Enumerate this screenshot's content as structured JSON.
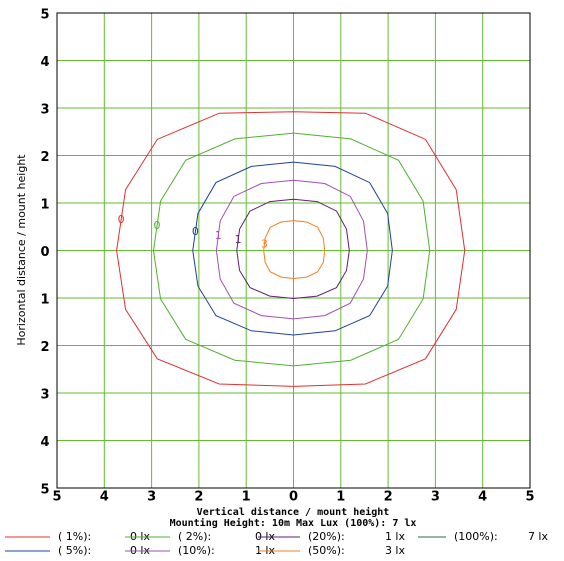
{
  "chart_data": {
    "type": "contour",
    "xlabel": "Vertical distance / mount height",
    "subtitle": "Mounting Height: 10m Max Lux (100%): 7 lx",
    "ylabel": "Horizontal distance / mount height",
    "xlim": [
      -5,
      5
    ],
    "ylim": [
      -5,
      5
    ],
    "xticks": [
      {
        "value": -5,
        "label": "5"
      },
      {
        "value": -4,
        "label": "4"
      },
      {
        "value": -3,
        "label": "3"
      },
      {
        "value": -2,
        "label": "2"
      },
      {
        "value": -1,
        "label": "1"
      },
      0,
      1,
      2,
      3,
      4,
      5
    ],
    "yticks": [
      5,
      4,
      3,
      2,
      1,
      0,
      {
        "value": -1,
        "label": "1"
      },
      {
        "value": -2,
        "label": "2"
      },
      {
        "value": -3,
        "label": "3"
      },
      {
        "value": -4,
        "label": "4"
      },
      {
        "value": -5,
        "label": "5"
      }
    ],
    "grid": true,
    "grid_color": "#66bb33",
    "series": [
      {
        "name": "( 1%):",
        "lux_label": "0 lx",
        "contour_label": "0",
        "color": "#e03030",
        "x": [
          3.62,
          3.44,
          2.79,
          1.52,
          0,
          -1.57,
          -2.88,
          -3.55,
          -3.74,
          -3.55,
          -2.88,
          -1.57,
          0,
          1.52,
          2.79,
          3.44
        ],
        "y": [
          0,
          1.28,
          2.34,
          2.89,
          2.92,
          2.89,
          2.34,
          1.28,
          0,
          -1.24,
          -2.28,
          -2.81,
          -2.86,
          -2.81,
          -2.28,
          -1.24
        ]
      },
      {
        "name": "( 5%):",
        "lux_label": "0 lx",
        "contour_label": "0",
        "color": "#2040a0",
        "x": [
          2.09,
          1.99,
          1.61,
          0.88,
          0,
          -0.89,
          -1.64,
          -2.02,
          -2.13,
          -2.02,
          -1.64,
          -0.89,
          0,
          0.88,
          1.61,
          1.99
        ],
        "y": [
          0,
          0.78,
          1.43,
          1.77,
          1.86,
          1.77,
          1.43,
          0.78,
          0,
          -0.75,
          -1.37,
          -1.69,
          -1.78,
          -1.69,
          -1.37,
          -0.75
        ]
      },
      {
        "name": "( 2%):",
        "lux_label": "0 lx",
        "contour_label": "0",
        "color": "#50b030",
        "x": [
          2.88,
          2.74,
          2.22,
          1.21,
          0,
          -1.24,
          -2.28,
          -2.81,
          -2.96,
          -2.81,
          -2.28,
          -1.24,
          0,
          1.21,
          2.22,
          2.74
        ],
        "y": [
          0,
          1.04,
          1.9,
          2.35,
          2.47,
          2.35,
          1.9,
          1.04,
          0,
          -1.02,
          -1.87,
          -2.31,
          -2.43,
          -2.31,
          -1.87,
          -1.02
        ]
      },
      {
        "name": "(10%):",
        "lux_label": "1 lx",
        "contour_label": "1",
        "color": "#a050b0",
        "x": [
          1.56,
          1.48,
          1.2,
          0.66,
          0,
          -0.68,
          -1.26,
          -1.55,
          -1.63,
          -1.55,
          -1.26,
          -0.68,
          0,
          0.66,
          1.2,
          1.48
        ],
        "y": [
          0,
          0.62,
          1.14,
          1.41,
          1.48,
          1.41,
          1.14,
          0.62,
          0,
          -0.6,
          -1.11,
          -1.37,
          -1.44,
          -1.37,
          -1.11,
          -0.6
        ]
      },
      {
        "name": "(20%):",
        "lux_label": "1 lx",
        "contour_label": "1",
        "color": "#602070",
        "x": [
          1.18,
          1.12,
          0.91,
          0.5,
          0,
          -0.5,
          -0.92,
          -1.14,
          -1.2,
          -1.14,
          -0.92,
          -0.5,
          0,
          0.5,
          0.91,
          1.12
        ],
        "y": [
          0,
          0.45,
          0.83,
          1.03,
          1.08,
          1.03,
          0.83,
          0.45,
          0,
          -0.42,
          -0.78,
          -0.96,
          -1.01,
          -0.96,
          -0.78,
          -0.42
        ]
      },
      {
        "name": "(50%):",
        "lux_label": "3 lx",
        "contour_label": "3",
        "color": "#f08020",
        "x": [
          0.66,
          0.63,
          0.51,
          0.28,
          0,
          -0.26,
          -0.49,
          -0.6,
          -0.63,
          -0.6,
          -0.49,
          -0.26,
          0,
          0.28,
          0.51,
          0.63
        ],
        "y": [
          0,
          0.26,
          0.49,
          0.6,
          0.63,
          0.6,
          0.49,
          0.26,
          0,
          -0.25,
          -0.45,
          -0.56,
          -0.59,
          -0.56,
          -0.45,
          -0.25
        ]
      },
      {
        "name": "(100%):",
        "lux_label": "7 lx",
        "color": "#207040"
      }
    ]
  }
}
